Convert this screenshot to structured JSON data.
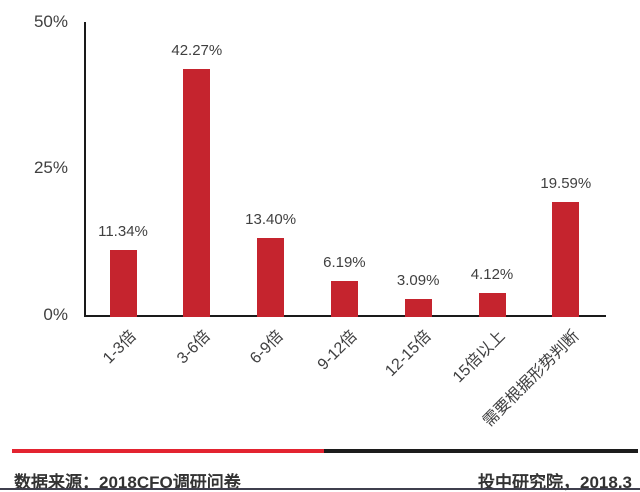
{
  "chart_data": {
    "type": "bar",
    "categories": [
      "1-3倍",
      "3-6倍",
      "6-9倍",
      "9-12倍",
      "12-15倍",
      "15倍以上",
      "需要根据形势判断"
    ],
    "values": [
      11.34,
      42.27,
      13.4,
      6.19,
      3.09,
      4.12,
      19.59
    ],
    "value_labels": [
      "11.34%",
      "42.27%",
      "13.40%",
      "6.19%",
      "3.09%",
      "4.12%",
      "19.59%"
    ],
    "y_ticks": [
      {
        "value": 0,
        "label": "0%"
      },
      {
        "value": 25,
        "label": "25%"
      },
      {
        "value": 50,
        "label": "50%"
      }
    ],
    "ylim": [
      0,
      50
    ],
    "title": "",
    "xlabel": "",
    "ylabel": "",
    "grid": false,
    "legend": false,
    "bar_color": "#C5242E"
  },
  "colors": {
    "axis": "#1A1A1A",
    "label_text": "#404040",
    "footer_text": "#333333",
    "divider_red": "#E32330",
    "divider_black": "#1C1C1C",
    "bottom_rule": "#3F3F4D"
  },
  "footer": {
    "source_text": "数据来源：2018CFO调研问卷",
    "credit_text": "投中研究院，2018.3"
  }
}
